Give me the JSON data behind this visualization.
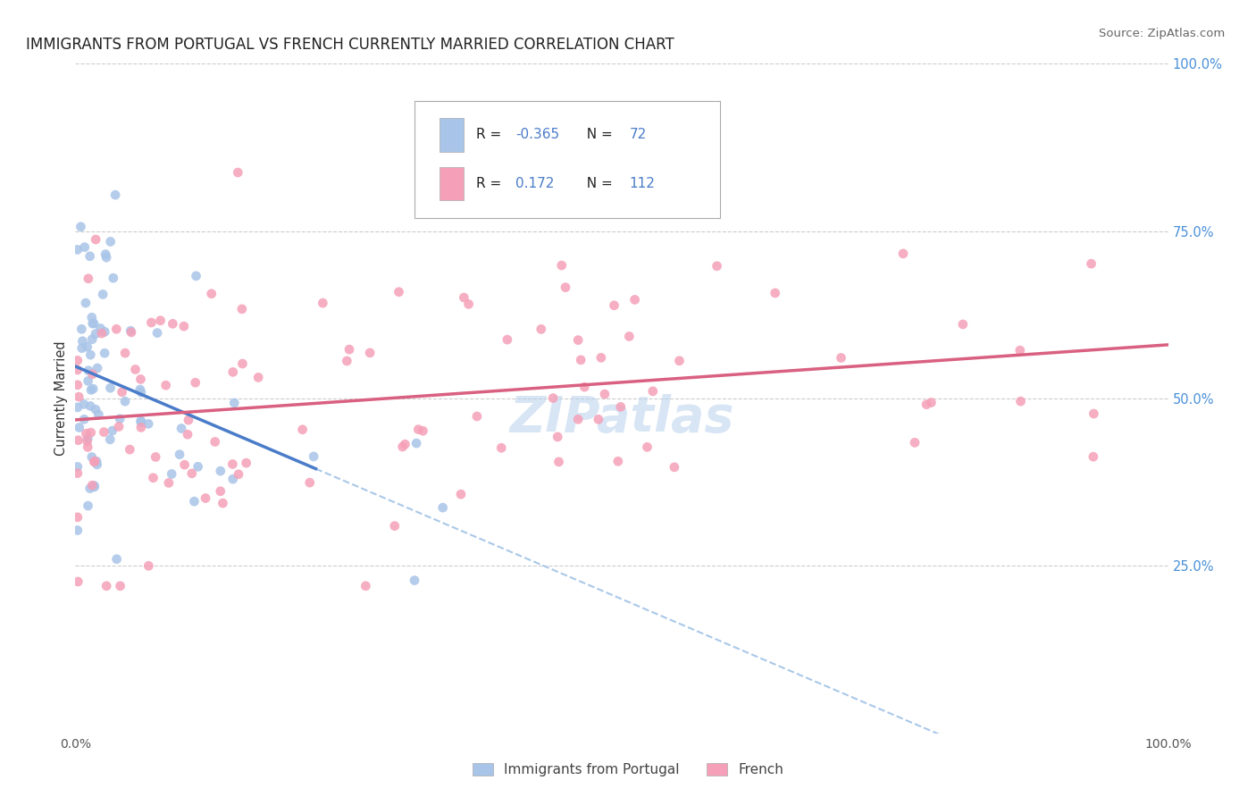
{
  "title": "IMMIGRANTS FROM PORTUGAL VS FRENCH CURRENTLY MARRIED CORRELATION CHART",
  "source": "Source: ZipAtlas.com",
  "ylabel": "Currently Married",
  "ylabel_right_labels": [
    "100.0%",
    "75.0%",
    "50.0%",
    "25.0%"
  ],
  "ylabel_right_positions": [
    1.0,
    0.75,
    0.5,
    0.25
  ],
  "legend_label1": "Immigrants from Portugal",
  "legend_label2": "French",
  "R1": -0.365,
  "N1": 72,
  "R2": 0.172,
  "N2": 112,
  "color_blue": "#a8c4e8",
  "color_pink": "#f5a0b8",
  "color_line_blue": "#4a7cc9",
  "color_line_pink": "#d96080",
  "color_line_dashed": "#aac8e8",
  "background_color": "#ffffff",
  "grid_color": "#cccccc"
}
